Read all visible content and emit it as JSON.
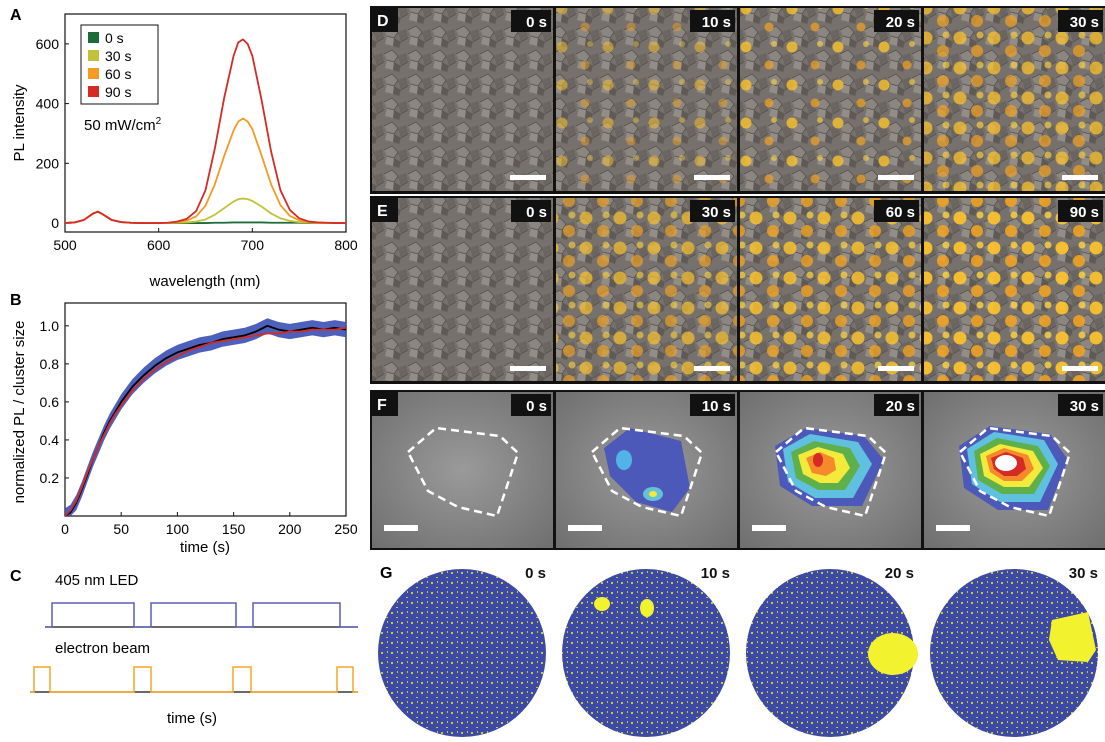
{
  "panels": {
    "A": "A",
    "B": "B",
    "C": "C",
    "D": "D",
    "E": "E",
    "F": "F",
    "G": "G"
  },
  "chart_data": [
    {
      "type": "line",
      "panel": "A",
      "xlabel": "wavelength (nm)",
      "ylabel": "PL intensity",
      "xlim": [
        500,
        800
      ],
      "ylim": [
        -30,
        700
      ],
      "xticks": [
        500,
        600,
        700,
        800
      ],
      "yticks": [
        0,
        200,
        400,
        600
      ],
      "annotation": "50 mW/cm",
      "annotation_sup": "2",
      "legend": "top-left",
      "x": [
        500,
        510,
        520,
        530,
        535,
        540,
        550,
        560,
        570,
        580,
        590,
        600,
        610,
        620,
        630,
        640,
        650,
        660,
        670,
        680,
        685,
        690,
        695,
        700,
        710,
        720,
        730,
        740,
        750,
        760,
        770,
        780,
        790,
        800
      ],
      "series": [
        {
          "name": "0 s",
          "color": "#1c6b38",
          "values": [
            0,
            2,
            10,
            32,
            38,
            30,
            10,
            3,
            1,
            0,
            0,
            0,
            0,
            0,
            0,
            0,
            0,
            1,
            1,
            2,
            2,
            2,
            2,
            2,
            2,
            1,
            1,
            1,
            1,
            0,
            0,
            0,
            0,
            0
          ]
        },
        {
          "name": "30 s",
          "color": "#c2c23a",
          "values": [
            0,
            2,
            10,
            32,
            38,
            30,
            10,
            3,
            1,
            0,
            0,
            0,
            0,
            1,
            2,
            5,
            12,
            28,
            50,
            72,
            80,
            82,
            80,
            74,
            55,
            32,
            16,
            7,
            3,
            1,
            0,
            0,
            0,
            0
          ]
        },
        {
          "name": "60 s",
          "color": "#f59a23",
          "values": [
            0,
            2,
            10,
            32,
            38,
            30,
            10,
            3,
            1,
            0,
            0,
            0,
            1,
            3,
            8,
            22,
            58,
            130,
            225,
            310,
            340,
            350,
            340,
            315,
            225,
            130,
            60,
            24,
            9,
            3,
            1,
            0,
            0,
            0
          ]
        },
        {
          "name": "90 s",
          "color": "#d62a25",
          "values": [
            0,
            2,
            10,
            32,
            38,
            30,
            10,
            3,
            1,
            0,
            0,
            0,
            1,
            5,
            14,
            40,
            110,
            250,
            420,
            560,
            605,
            615,
            600,
            560,
            410,
            240,
            110,
            44,
            16,
            5,
            2,
            1,
            0,
            0
          ]
        }
      ]
    },
    {
      "type": "line",
      "panel": "B",
      "xlabel": "time (s)",
      "ylabel": "normalized PL / cluster size",
      "xlim": [
        0,
        250
      ],
      "ylim": [
        0,
        1.12
      ],
      "xticks": [
        0,
        50,
        100,
        150,
        200,
        250
      ],
      "yticks": [
        0.2,
        0.4,
        0.6,
        0.8,
        1.0
      ],
      "x": [
        0,
        5,
        10,
        15,
        20,
        25,
        30,
        35,
        40,
        45,
        50,
        55,
        60,
        70,
        80,
        90,
        100,
        110,
        120,
        130,
        140,
        150,
        160,
        170,
        180,
        190,
        200,
        210,
        220,
        230,
        240,
        250
      ],
      "series": [
        {
          "color": "#000000",
          "values": [
            0,
            0.02,
            0.07,
            0.14,
            0.22,
            0.3,
            0.37,
            0.44,
            0.5,
            0.55,
            0.6,
            0.64,
            0.68,
            0.74,
            0.79,
            0.83,
            0.86,
            0.88,
            0.9,
            0.91,
            0.93,
            0.94,
            0.95,
            0.97,
            1.0,
            0.98,
            0.97,
            0.98,
            0.99,
            0.98,
            0.99,
            0.98
          ]
        },
        {
          "color": "#d62a25",
          "values": [
            0,
            0.03,
            0.08,
            0.15,
            0.23,
            0.3,
            0.37,
            0.43,
            0.49,
            0.54,
            0.58,
            0.62,
            0.66,
            0.72,
            0.77,
            0.81,
            0.84,
            0.87,
            0.89,
            0.91,
            0.92,
            0.93,
            0.94,
            0.95,
            0.96,
            0.96,
            0.97,
            0.97,
            0.98,
            0.98,
            0.98,
            0.99
          ]
        }
      ],
      "error_band": {
        "color": "#3a4fb5",
        "halfwidth": 0.04
      }
    }
  ],
  "panel_c": {
    "led_label": "405 nm LED",
    "beam_label": "electron beam",
    "xlabel": "time (s)",
    "led_color": "#5a5fb8",
    "beam_color": "#f5a623"
  },
  "rows": {
    "D": [
      "0 s",
      "10 s",
      "20 s",
      "30 s"
    ],
    "E": [
      "0 s",
      "30 s",
      "60 s",
      "90 s"
    ],
    "F": [
      "0 s",
      "10 s",
      "20 s",
      "30 s"
    ],
    "G": [
      "0 s",
      "10 s",
      "20 s",
      "30 s"
    ]
  }
}
